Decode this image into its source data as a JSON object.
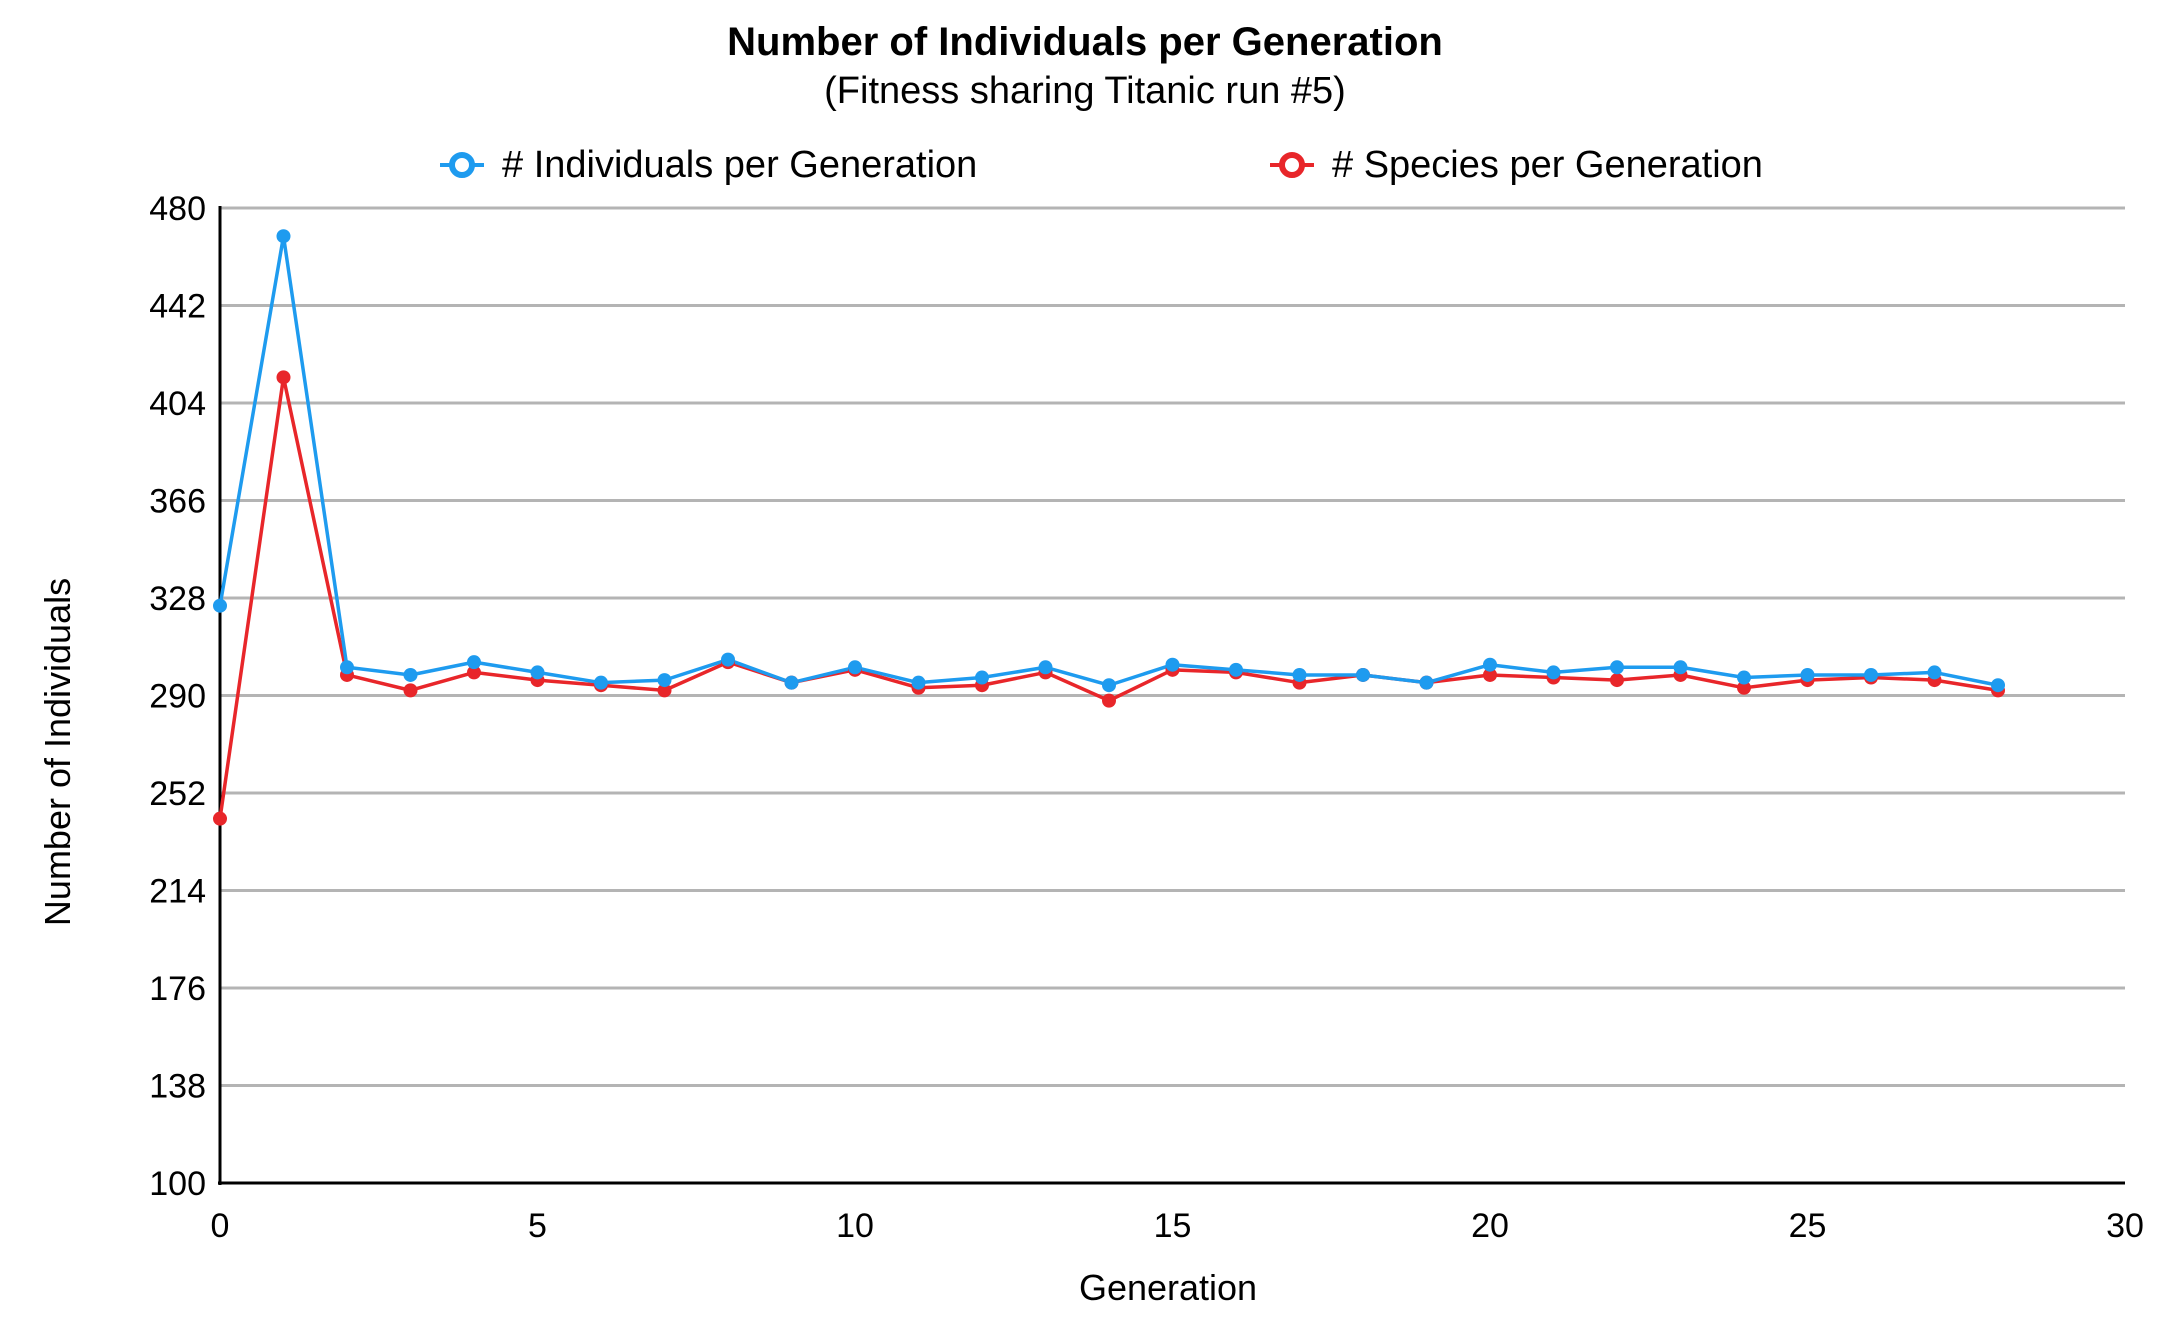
{
  "chart_data": {
    "type": "line",
    "title": "Number of Individuals per Generation",
    "subtitle": "(Fitness sharing Titanic run #5)",
    "xlabel": "Generation",
    "ylabel": "Number of Individuals",
    "xlim": [
      0,
      30
    ],
    "ylim": [
      100,
      480
    ],
    "x_ticks": [
      0,
      5,
      10,
      15,
      20,
      25,
      30
    ],
    "y_ticks": [
      100,
      138,
      176,
      214,
      252,
      290,
      328,
      366,
      404,
      442,
      480
    ],
    "grid": "horizontal",
    "legend_position": "top",
    "x": [
      0,
      1,
      2,
      3,
      4,
      5,
      6,
      7,
      8,
      9,
      10,
      11,
      12,
      13,
      14,
      15,
      16,
      17,
      18,
      19,
      20,
      21,
      22,
      23,
      24,
      25,
      26,
      27,
      28
    ],
    "series": [
      {
        "name": "# Individuals per Generation",
        "color": "#1e9bef",
        "values": [
          325,
          469,
          301,
          298,
          303,
          299,
          295,
          296,
          304,
          295,
          301,
          295,
          297,
          301,
          294,
          302,
          300,
          298,
          298,
          295,
          302,
          299,
          301,
          301,
          297,
          298,
          298,
          299,
          294
        ]
      },
      {
        "name": "# Species per Generation",
        "color": "#e8262a",
        "values": [
          242,
          414,
          298,
          292,
          299,
          296,
          294,
          292,
          303,
          295,
          300,
          293,
          294,
          299,
          288,
          300,
          299,
          295,
          298,
          295,
          298,
          297,
          296,
          298,
          293,
          296,
          297,
          296,
          292
        ]
      }
    ]
  }
}
